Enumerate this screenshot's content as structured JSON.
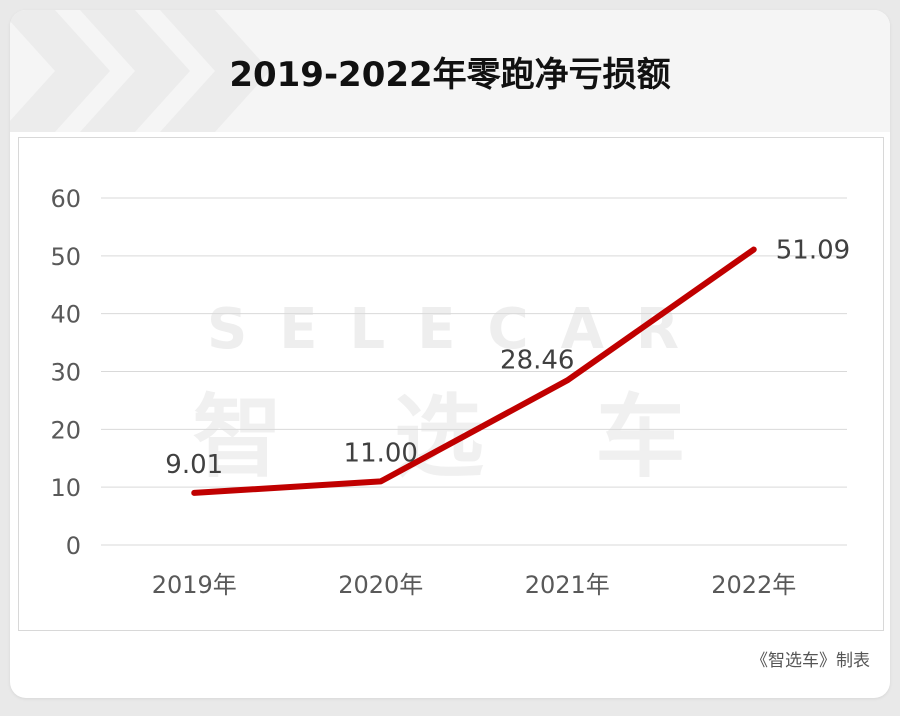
{
  "header": {
    "title": "2019-2022年零跑净亏损额"
  },
  "watermark": {
    "logo_text": "SELECAR",
    "cn_text": "智 选 车"
  },
  "footer": {
    "credit": "《智选车》制表"
  },
  "colors": {
    "line": "#c00000",
    "grid": "#d9d9d9",
    "axis_text": "#595959",
    "label_text": "#404040"
  },
  "chart_data": {
    "type": "line",
    "title": "2019-2022年零跑净亏损额",
    "xlabel": "",
    "ylabel": "",
    "categories": [
      "2019年",
      "2020年",
      "2021年",
      "2022年"
    ],
    "series": [
      {
        "values": [
          9.01,
          11.0,
          28.46,
          51.09
        ],
        "data_labels": [
          "9.01",
          "11.00",
          "28.46",
          "51.09"
        ]
      }
    ],
    "yticks": [
      "0",
      "10",
      "20",
      "30",
      "40",
      "50",
      "60"
    ],
    "ylim": [
      0,
      60
    ],
    "grid": true,
    "legend": "none"
  }
}
